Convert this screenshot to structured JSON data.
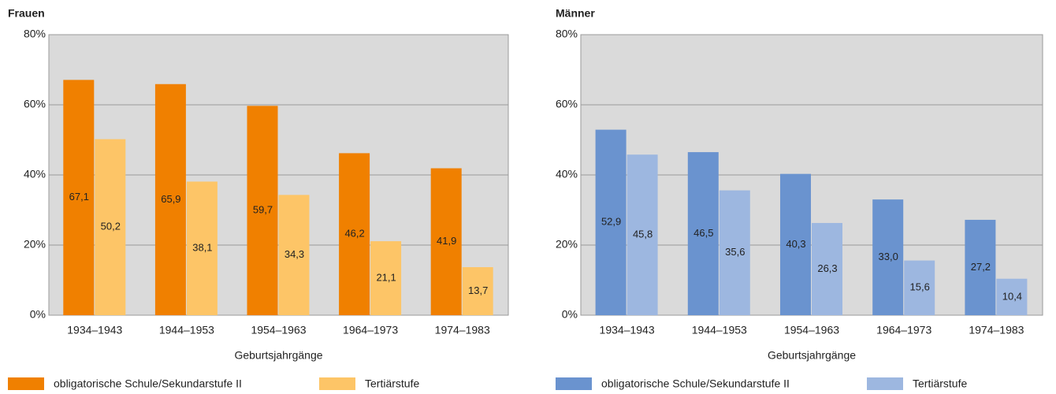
{
  "chart_data": [
    {
      "type": "bar",
      "title": "Frauen",
      "x_label": "Geburtsjahrgänge",
      "categories": [
        "1934–1943",
        "1944–1953",
        "1954–1963",
        "1964–1973",
        "1974–1983"
      ],
      "series": [
        {
          "name": "obligatorische Schule/Sekundarstufe II",
          "color": "#f08000",
          "values": [
            67.1,
            65.9,
            59.7,
            46.2,
            41.9
          ],
          "value_labels": [
            "67,1",
            "65,9",
            "59,7",
            "46,2",
            "41,9"
          ]
        },
        {
          "name": "Tertiärstufe",
          "color": "#fdc567",
          "values": [
            50.2,
            38.1,
            34.3,
            21.1,
            13.7
          ],
          "value_labels": [
            "50,2",
            "38,1",
            "34,3",
            "21,1",
            "13,7"
          ]
        }
      ],
      "ylim": [
        0,
        80
      ],
      "yticks": [
        {
          "value": 0,
          "label": "0%"
        },
        {
          "value": 20,
          "label": "20%"
        },
        {
          "value": 40,
          "label": "40%"
        },
        {
          "value": 60,
          "label": "60%"
        },
        {
          "value": 80,
          "label": "80%"
        }
      ],
      "grid": true
    },
    {
      "type": "bar",
      "title": "Männer",
      "x_label": "Geburtsjahrgänge",
      "categories": [
        "1934–1943",
        "1944–1953",
        "1954–1963",
        "1964–1973",
        "1974–1983"
      ],
      "series": [
        {
          "name": "obligatorische Schule/Sekundarstufe II",
          "color": "#6a93cf",
          "values": [
            52.9,
            46.5,
            40.3,
            33.0,
            27.2
          ],
          "value_labels": [
            "52,9",
            "46,5",
            "40,3",
            "33,0",
            "27,2"
          ]
        },
        {
          "name": "Tertiärstufe",
          "color": "#9db7e0",
          "values": [
            45.8,
            35.6,
            26.3,
            15.6,
            10.4
          ],
          "value_labels": [
            "45,8",
            "35,6",
            "26,3",
            "15,6",
            "10,4"
          ]
        }
      ],
      "ylim": [
        0,
        80
      ],
      "yticks": [
        {
          "value": 0,
          "label": "0%"
        },
        {
          "value": 20,
          "label": "20%"
        },
        {
          "value": 40,
          "label": "40%"
        },
        {
          "value": 60,
          "label": "60%"
        },
        {
          "value": 80,
          "label": "80%"
        }
      ],
      "grid": true
    }
  ]
}
